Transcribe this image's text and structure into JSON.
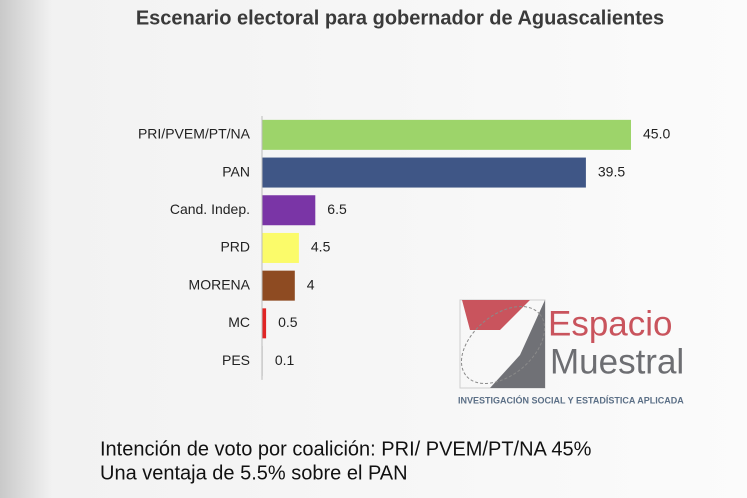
{
  "chart_data": {
    "type": "bar",
    "orientation": "horizontal",
    "title": "Escenario electoral para gobernador de Aguascalientes",
    "categories": [
      "PRI/PVEM/PT/NA",
      "PAN",
      "Cand. Indep.",
      "PRD",
      "MORENA",
      "MC",
      "PES"
    ],
    "values": [
      45.0,
      39.5,
      6.5,
      4.5,
      4,
      0.5,
      0.1
    ],
    "value_labels": [
      "45.0",
      "39.5",
      "6.5",
      "4.5",
      "4",
      "0.5",
      "0.1"
    ],
    "colors": [
      "#9dd46a",
      "#3f5686",
      "#7a35a6",
      "#fbfb6a",
      "#8e4b22",
      "#e02424",
      "#d9d9d9"
    ]
  },
  "logo": {
    "line1": "Espacio",
    "line2": "Muestral",
    "tagline": "INVESTIGACIÓN SOCIAL Y ESTADÍSTICA APLICADA"
  },
  "footer": [
    "Intención de voto por coalición: PRI/ PVEM/PT/NA 45%",
    "Una ventaja de 5.5% sobre el PAN"
  ]
}
